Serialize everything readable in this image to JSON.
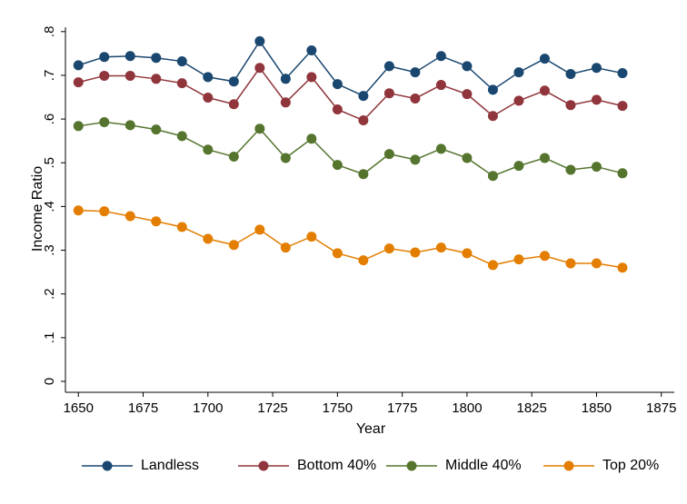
{
  "chart_data": {
    "type": "line",
    "xlabel": "Year",
    "ylabel": "Income Ratio",
    "x": [
      1650,
      1660,
      1670,
      1680,
      1690,
      1700,
      1710,
      1720,
      1730,
      1740,
      1750,
      1760,
      1770,
      1780,
      1790,
      1800,
      1810,
      1820,
      1830,
      1840,
      1850,
      1860
    ],
    "series": [
      {
        "name": "Landless",
        "color": "#1a476f",
        "values": [
          0.723,
          0.742,
          0.744,
          0.74,
          0.732,
          0.696,
          0.686,
          0.778,
          0.692,
          0.757,
          0.68,
          0.653,
          0.721,
          0.707,
          0.744,
          0.721,
          0.667,
          0.707,
          0.738,
          0.703,
          0.717,
          0.705
        ]
      },
      {
        "name": "Bottom 40%",
        "color": "#90353b",
        "values": [
          0.684,
          0.699,
          0.699,
          0.692,
          0.682,
          0.649,
          0.634,
          0.717,
          0.638,
          0.696,
          0.622,
          0.597,
          0.659,
          0.647,
          0.678,
          0.657,
          0.607,
          0.642,
          0.665,
          0.632,
          0.644,
          0.63
        ]
      },
      {
        "name": "Middle 40%",
        "color": "#55752f",
        "values": [
          0.584,
          0.593,
          0.586,
          0.576,
          0.561,
          0.53,
          0.514,
          0.578,
          0.511,
          0.555,
          0.495,
          0.474,
          0.52,
          0.507,
          0.532,
          0.511,
          0.47,
          0.493,
          0.511,
          0.484,
          0.491,
          0.476
        ]
      },
      {
        "name": "Top 20%",
        "color": "#e37e00",
        "values": [
          0.391,
          0.389,
          0.378,
          0.366,
          0.353,
          0.326,
          0.312,
          0.347,
          0.306,
          0.331,
          0.293,
          0.277,
          0.304,
          0.295,
          0.306,
          0.293,
          0.266,
          0.279,
          0.287,
          0.27,
          0.27,
          0.26
        ]
      }
    ],
    "xlim": [
      1645,
      1880
    ],
    "xticks": [
      1650,
      1675,
      1700,
      1725,
      1750,
      1775,
      1800,
      1825,
      1850,
      1875
    ],
    "ylim": [
      -0.025,
      0.81
    ],
    "yticks": [
      0,
      {
        "value": 0.1,
        "label": ".1"
      },
      {
        "value": 0.2,
        "label": ".2"
      },
      {
        "value": 0.3,
        "label": ".3"
      },
      {
        "value": 0.4,
        "label": ".4"
      },
      {
        "value": 0.5,
        "label": ".5"
      },
      {
        "value": 0.6,
        "label": ".6"
      },
      {
        "value": 0.7,
        "label": ".7"
      },
      {
        "value": 0.8,
        "label": ".8"
      }
    ],
    "grid": false,
    "legend": "bottom"
  }
}
